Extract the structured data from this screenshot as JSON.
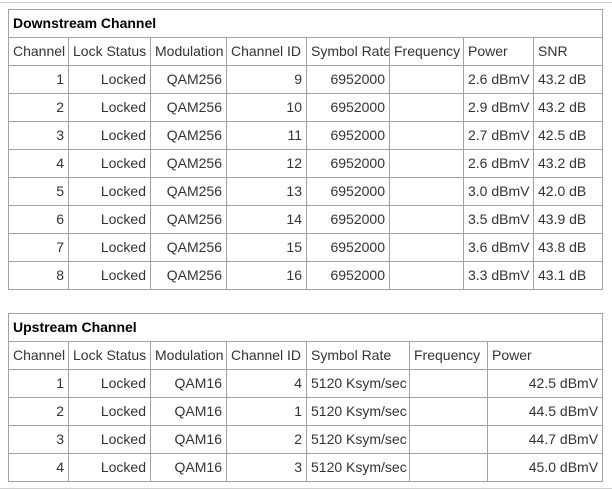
{
  "downstream": {
    "title": "Downstream Channel",
    "columns": [
      "Channel",
      "Lock Status",
      "Modulation",
      "Channel ID",
      "Symbol Rate",
      "Frequency",
      "Power",
      "SNR"
    ],
    "rows": [
      [
        "1",
        "Locked",
        "QAM256",
        "9",
        "6952000",
        "",
        "2.6 dBmV",
        "43.2 dB"
      ],
      [
        "2",
        "Locked",
        "QAM256",
        "10",
        "6952000",
        "",
        "2.9 dBmV",
        "43.2 dB"
      ],
      [
        "3",
        "Locked",
        "QAM256",
        "11",
        "6952000",
        "",
        "2.7 dBmV",
        "42.5 dB"
      ],
      [
        "4",
        "Locked",
        "QAM256",
        "12",
        "6952000",
        "",
        "2.6 dBmV",
        "43.2 dB"
      ],
      [
        "5",
        "Locked",
        "QAM256",
        "13",
        "6952000",
        "",
        "3.0 dBmV",
        "42.0 dB"
      ],
      [
        "6",
        "Locked",
        "QAM256",
        "14",
        "6952000",
        "",
        "3.5 dBmV",
        "43.9 dB"
      ],
      [
        "7",
        "Locked",
        "QAM256",
        "15",
        "6952000",
        "",
        "3.6 dBmV",
        "43.8 dB"
      ],
      [
        "8",
        "Locked",
        "QAM256",
        "16",
        "6952000",
        "",
        "3.3 dBmV",
        "43.1 dB"
      ]
    ]
  },
  "upstream": {
    "title": "Upstream Channel",
    "columns": [
      "Channel",
      "Lock Status",
      "Modulation",
      "Channel ID",
      "Symbol Rate",
      "Frequency",
      "Power"
    ],
    "rows": [
      [
        "1",
        "Locked",
        "QAM16",
        "4",
        "5120 Ksym/sec",
        "",
        "42.5 dBmV"
      ],
      [
        "2",
        "Locked",
        "QAM16",
        "1",
        "5120 Ksym/sec",
        "",
        "44.5 dBmV"
      ],
      [
        "3",
        "Locked",
        "QAM16",
        "2",
        "5120 Ksym/sec",
        "",
        "44.7 dBmV"
      ],
      [
        "4",
        "Locked",
        "QAM16",
        "3",
        "5120 Ksym/sec",
        "",
        "45.0 dBmV"
      ]
    ]
  },
  "colors": {
    "table_border": "#a2a2a2",
    "text": "#333333",
    "title_text": "#000000",
    "divider": "#cccccc"
  }
}
